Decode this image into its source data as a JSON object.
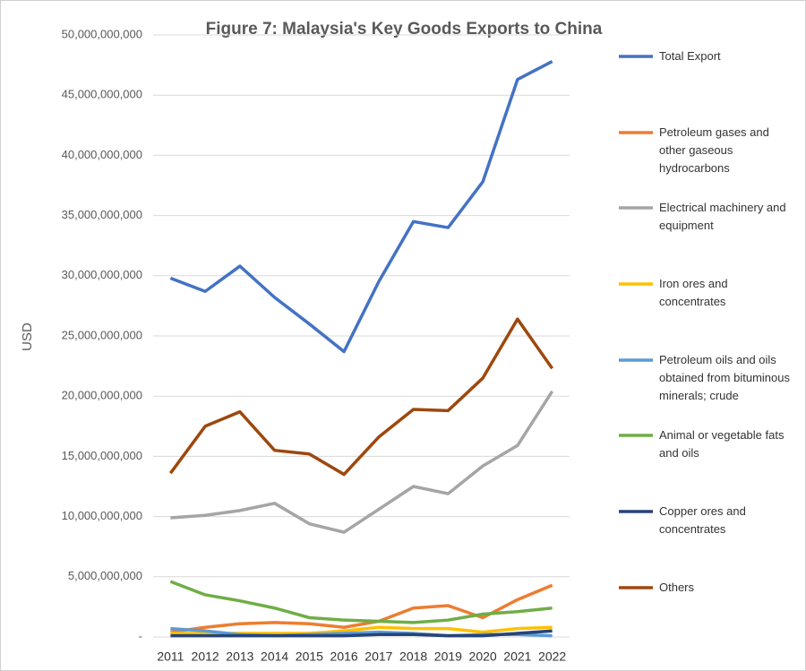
{
  "chart_data": {
    "type": "line",
    "title": "Figure 7: Malaysia's Key Goods Exports to China",
    "y_label": "USD",
    "categories": [
      "2011",
      "2012",
      "2013",
      "2014",
      "2015",
      "2016",
      "2017",
      "2018",
      "2019",
      "2020",
      "2021",
      "2022"
    ],
    "ylim": [
      0,
      50000000000
    ],
    "yticks": [
      {
        "value": 0,
        "label": "-"
      },
      {
        "value": 5000000000,
        "label": "5,000,000,000"
      },
      {
        "value": 10000000000,
        "label": "10,000,000,000"
      },
      {
        "value": 15000000000,
        "label": "15,000,000,000"
      },
      {
        "value": 20000000000,
        "label": "20,000,000,000"
      },
      {
        "value": 25000000000,
        "label": "25,000,000,000"
      },
      {
        "value": 30000000000,
        "label": "30,000,000,000"
      },
      {
        "value": 35000000000,
        "label": "35,000,000,000"
      },
      {
        "value": 40000000000,
        "label": "40,000,000,000"
      },
      {
        "value": 45000000000,
        "label": "45,000,000,000"
      },
      {
        "value": 50000000000,
        "label": "50,000,000,000"
      }
    ],
    "grid": true,
    "series": [
      {
        "name": "Total Export",
        "color": "#4472c4",
        "values": [
          29800000000,
          28700000000,
          30800000000,
          28200000000,
          26000000000,
          23700000000,
          29500000000,
          34500000000,
          34000000000,
          37800000000,
          46300000000,
          47800000000
        ]
      },
      {
        "name": "Petroleum gases and other gaseous hydrocarbons",
        "color": "#ed7d31",
        "values": [
          400000000,
          800000000,
          1100000000,
          1200000000,
          1100000000,
          800000000,
          1300000000,
          2400000000,
          2600000000,
          1600000000,
          3100000000,
          4300000000
        ]
      },
      {
        "name": "Electrical machinery and equipment",
        "color": "#a5a5a5",
        "values": [
          9900000000,
          10100000000,
          10500000000,
          11100000000,
          9400000000,
          8700000000,
          10600000000,
          12500000000,
          11900000000,
          14200000000,
          15900000000,
          20400000000
        ]
      },
      {
        "name": "Iron ores and concentrates",
        "color": "#ffc000",
        "values": [
          300000000,
          300000000,
          300000000,
          300000000,
          300000000,
          500000000,
          800000000,
          700000000,
          700000000,
          400000000,
          700000000,
          800000000
        ]
      },
      {
        "name": "Petroleum oils and oils obtained from bituminous minerals; crude",
        "color": "#5b9bd5",
        "values": [
          700000000,
          500000000,
          200000000,
          100000000,
          200000000,
          300000000,
          400000000,
          300000000,
          100000000,
          200000000,
          200000000,
          100000000
        ]
      },
      {
        "name": "Animal or vegetable fats and oils",
        "color": "#70ad47",
        "values": [
          4600000000,
          3500000000,
          3000000000,
          2400000000,
          1600000000,
          1400000000,
          1300000000,
          1200000000,
          1400000000,
          1900000000,
          2100000000,
          2400000000
        ]
      },
      {
        "name": "Copper ores and concentrates",
        "color": "#264478",
        "values": [
          100000000,
          100000000,
          100000000,
          100000000,
          100000000,
          100000000,
          200000000,
          200000000,
          100000000,
          100000000,
          300000000,
          500000000
        ]
      },
      {
        "name": "Others",
        "color": "#9e480e",
        "values": [
          13600000000,
          17500000000,
          18700000000,
          15500000000,
          15200000000,
          13500000000,
          16600000000,
          18900000000,
          18800000000,
          21500000000,
          26400000000,
          22300000000
        ]
      }
    ]
  }
}
